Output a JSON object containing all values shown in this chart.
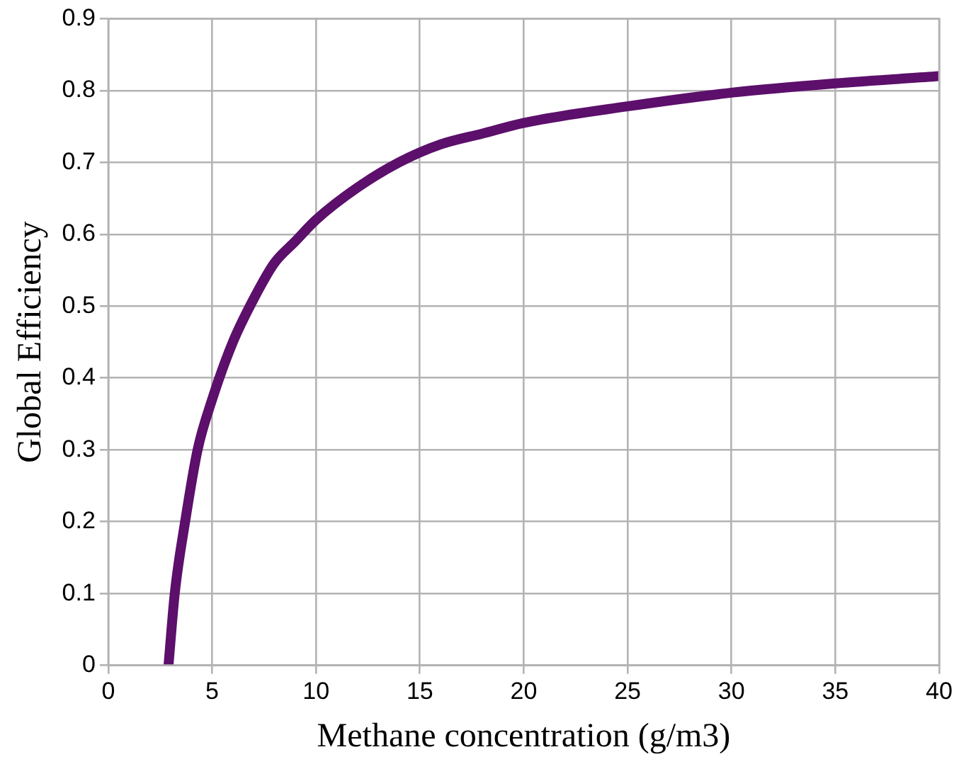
{
  "chart_data": {
    "type": "line",
    "xlabel": "Methane concentration (g/m3)",
    "ylabel": "Global Efficiency",
    "x": [
      2.9,
      3.2,
      3.7,
      4.3,
      5,
      6,
      7,
      8,
      9,
      10,
      12,
      14,
      16,
      18,
      20,
      25,
      30,
      35,
      40
    ],
    "series": [
      {
        "color": "#5c0f6b",
        "values": [
          0,
          0.1,
          0.2,
          0.3,
          0.37,
          0.45,
          0.51,
          0.56,
          0.59,
          0.62,
          0.665,
          0.7,
          0.725,
          0.74,
          0.755,
          0.778,
          0.797,
          0.81,
          0.82
        ]
      }
    ],
    "xlim": [
      0,
      40
    ],
    "xticks": [
      0,
      5,
      10,
      15,
      20,
      25,
      30,
      35,
      40
    ],
    "ylim": [
      0,
      0.9
    ],
    "yticks": [
      0,
      0.1,
      0.2,
      0.3,
      0.4,
      0.5,
      0.6,
      0.7,
      0.8,
      0.9
    ],
    "grid": true,
    "marker": "none",
    "line_style": "solid"
  }
}
